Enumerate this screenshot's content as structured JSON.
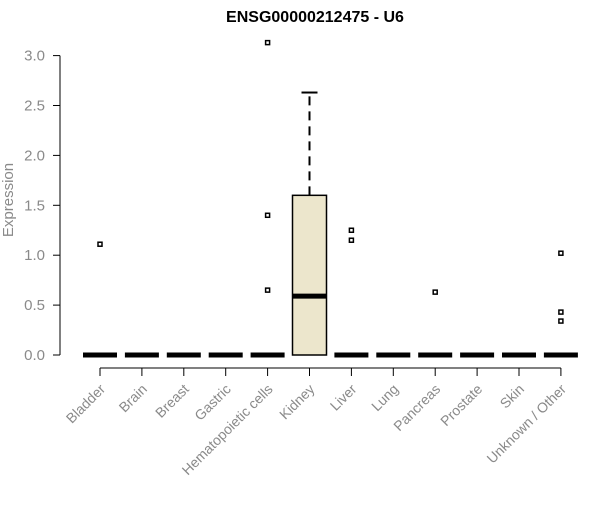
{
  "chart_data": {
    "type": "box",
    "title": "ENSG00000212475 - U6",
    "xlabel": "",
    "ylabel": "Expression",
    "ylim": [
      0,
      3.1
    ],
    "yticks": [
      "0.0",
      "0.5",
      "1.0",
      "1.5",
      "2.0",
      "2.5",
      "3.0"
    ],
    "grid": false,
    "legend": "none",
    "colors": {
      "box_fill": "#ece6cc",
      "line": "#000000",
      "axis_text": "#8a8a8a"
    },
    "categories": [
      "Bladder",
      "Brain",
      "Breast",
      "Gastric",
      "Hematopoietic cells",
      "Kidney",
      "Liver",
      "Lung",
      "Pancreas",
      "Prostate",
      "Skin",
      "Unknown / Other"
    ],
    "boxes": [
      {
        "q1": 0,
        "median": 0,
        "q3": 0,
        "whisker_low": 0,
        "whisker_high": 0,
        "outliers": [
          1.11
        ]
      },
      {
        "q1": 0,
        "median": 0,
        "q3": 0,
        "whisker_low": 0,
        "whisker_high": 0,
        "outliers": []
      },
      {
        "q1": 0,
        "median": 0,
        "q3": 0,
        "whisker_low": 0,
        "whisker_high": 0,
        "outliers": []
      },
      {
        "q1": 0,
        "median": 0,
        "q3": 0,
        "whisker_low": 0,
        "whisker_high": 0,
        "outliers": []
      },
      {
        "q1": 0,
        "median": 0,
        "q3": 0,
        "whisker_low": 0,
        "whisker_high": 0,
        "outliers": [
          3.13,
          1.4,
          0.65
        ]
      },
      {
        "q1": 0,
        "median": 0.59,
        "q3": 1.6,
        "whisker_low": 0,
        "whisker_high": 2.63,
        "outliers": []
      },
      {
        "q1": 0,
        "median": 0,
        "q3": 0,
        "whisker_low": 0,
        "whisker_high": 0,
        "outliers": [
          1.25,
          1.15
        ]
      },
      {
        "q1": 0,
        "median": 0,
        "q3": 0,
        "whisker_low": 0,
        "whisker_high": 0,
        "outliers": []
      },
      {
        "q1": 0,
        "median": 0,
        "q3": 0,
        "whisker_low": 0,
        "whisker_high": 0,
        "outliers": [
          0.63
        ]
      },
      {
        "q1": 0,
        "median": 0,
        "q3": 0,
        "whisker_low": 0,
        "whisker_high": 0,
        "outliers": []
      },
      {
        "q1": 0,
        "median": 0,
        "q3": 0,
        "whisker_low": 0,
        "whisker_high": 0,
        "outliers": []
      },
      {
        "q1": 0,
        "median": 0,
        "q3": 0,
        "whisker_low": 0,
        "whisker_high": 0,
        "outliers": [
          1.02,
          0.43,
          0.34
        ]
      }
    ]
  }
}
